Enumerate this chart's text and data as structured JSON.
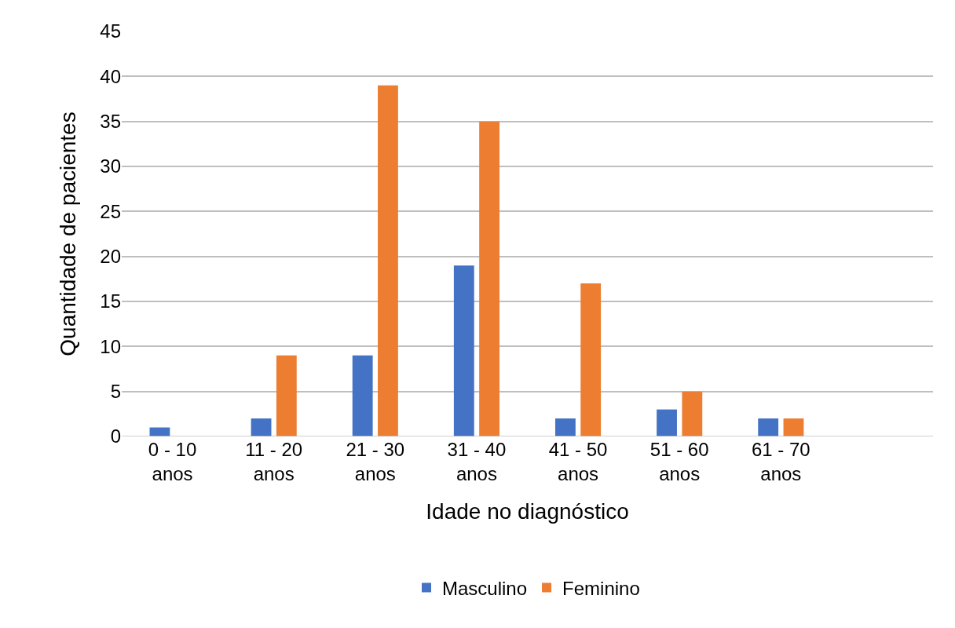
{
  "chart_data": {
    "type": "bar",
    "xlabel": "Idade no diagnóstico",
    "ylabel": "Quantidade de pacientes",
    "categories": [
      "0 - 10 anos",
      "11 - 20 anos",
      "21 - 30 anos",
      "31 - 40 anos",
      "41 - 50 anos",
      "51 - 60 anos",
      "61 - 70 anos",
      null
    ],
    "series": [
      {
        "name": "Masculino",
        "color": "#4472c4",
        "values": [
          1,
          2,
          9,
          19,
          2,
          3,
          2,
          null
        ]
      },
      {
        "name": "Feminino",
        "color": "#ed7d31",
        "values": [
          0,
          9,
          39,
          35,
          17,
          5,
          2,
          null
        ]
      }
    ],
    "ylim": [
      0,
      45
    ],
    "yticks": [
      0,
      5,
      10,
      15,
      20,
      25,
      30,
      35,
      40,
      45
    ],
    "grid": "y",
    "legend": "bottom"
  }
}
